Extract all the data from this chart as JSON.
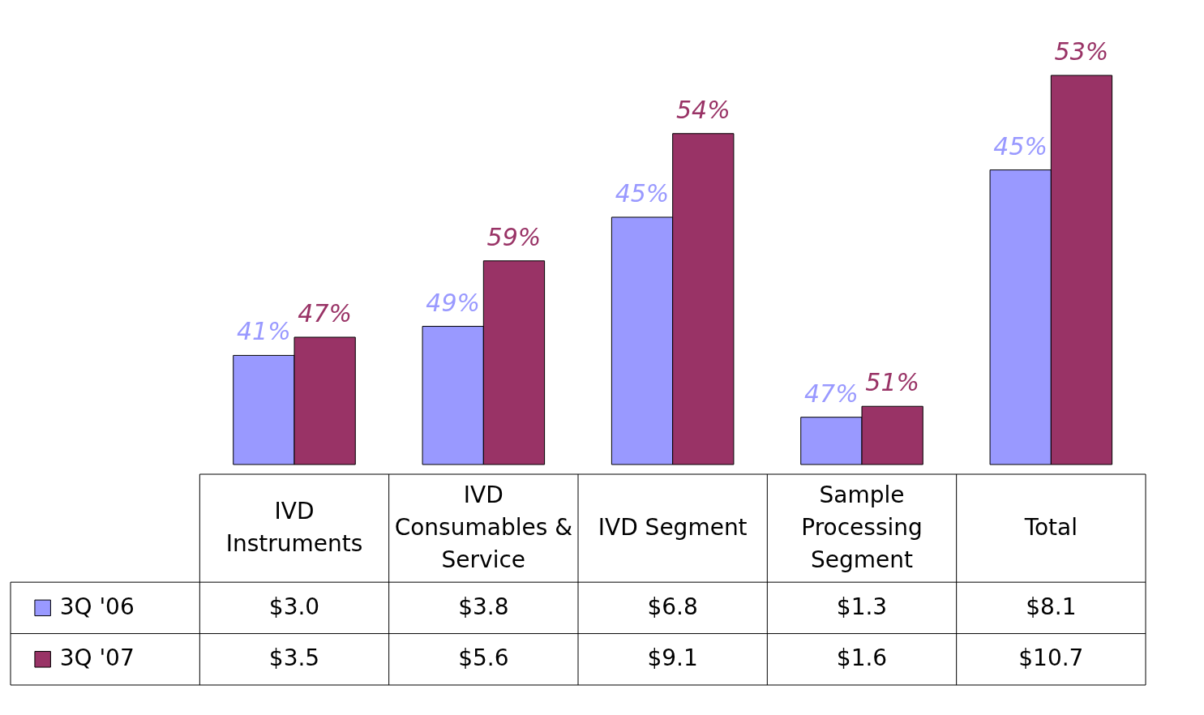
{
  "chart_data": {
    "type": "bar",
    "categories": [
      "IVD Instruments",
      "IVD Consumables & Service",
      "IVD Segment",
      "Sample Processing Segment",
      "Total"
    ],
    "series": [
      {
        "name": "3Q '06",
        "color": "#9999ff",
        "values": [
          3.0,
          3.8,
          6.8,
          1.3,
          8.1
        ],
        "value_labels": [
          "$3.0",
          "$3.8",
          "$6.8",
          "$1.3",
          "$8.1"
        ]
      },
      {
        "name": "3Q '07",
        "color": "#993366",
        "values": [
          3.5,
          5.6,
          9.1,
          1.6,
          10.7
        ],
        "value_labels": [
          "$3.5",
          "$5.6",
          "$9.1",
          "$1.6",
          "$10.7"
        ]
      }
    ],
    "legend": "bottom left",
    "annotations": [
      {
        "text": "41%",
        "x": "IVD Instruments",
        "y": 3.0
      },
      {
        "text": "49%",
        "x": "IVD Consumables & Service",
        "y": 3.8
      },
      {
        "text": "45%",
        "x": "IVD Segment",
        "y": 6.8
      },
      {
        "text": "47%",
        "x": "Sample Processing Segment",
        "y": 1.3
      },
      {
        "text": "45%",
        "x": "Total",
        "y": 8.1
      },
      {
        "text": "47%",
        "x": "IVD Instruments",
        "y": 3.5
      },
      {
        "text": "59%",
        "x": "IVD Consumables & Service",
        "y": 5.6
      },
      {
        "text": "54%",
        "x": "IVD Segment",
        "y": 9.1
      },
      {
        "text": "51%",
        "x": "Sample Processing Segment",
        "y": 1.6
      },
      {
        "text": "53%",
        "x": "Total",
        "y": 10.7
      }
    ]
  }
}
